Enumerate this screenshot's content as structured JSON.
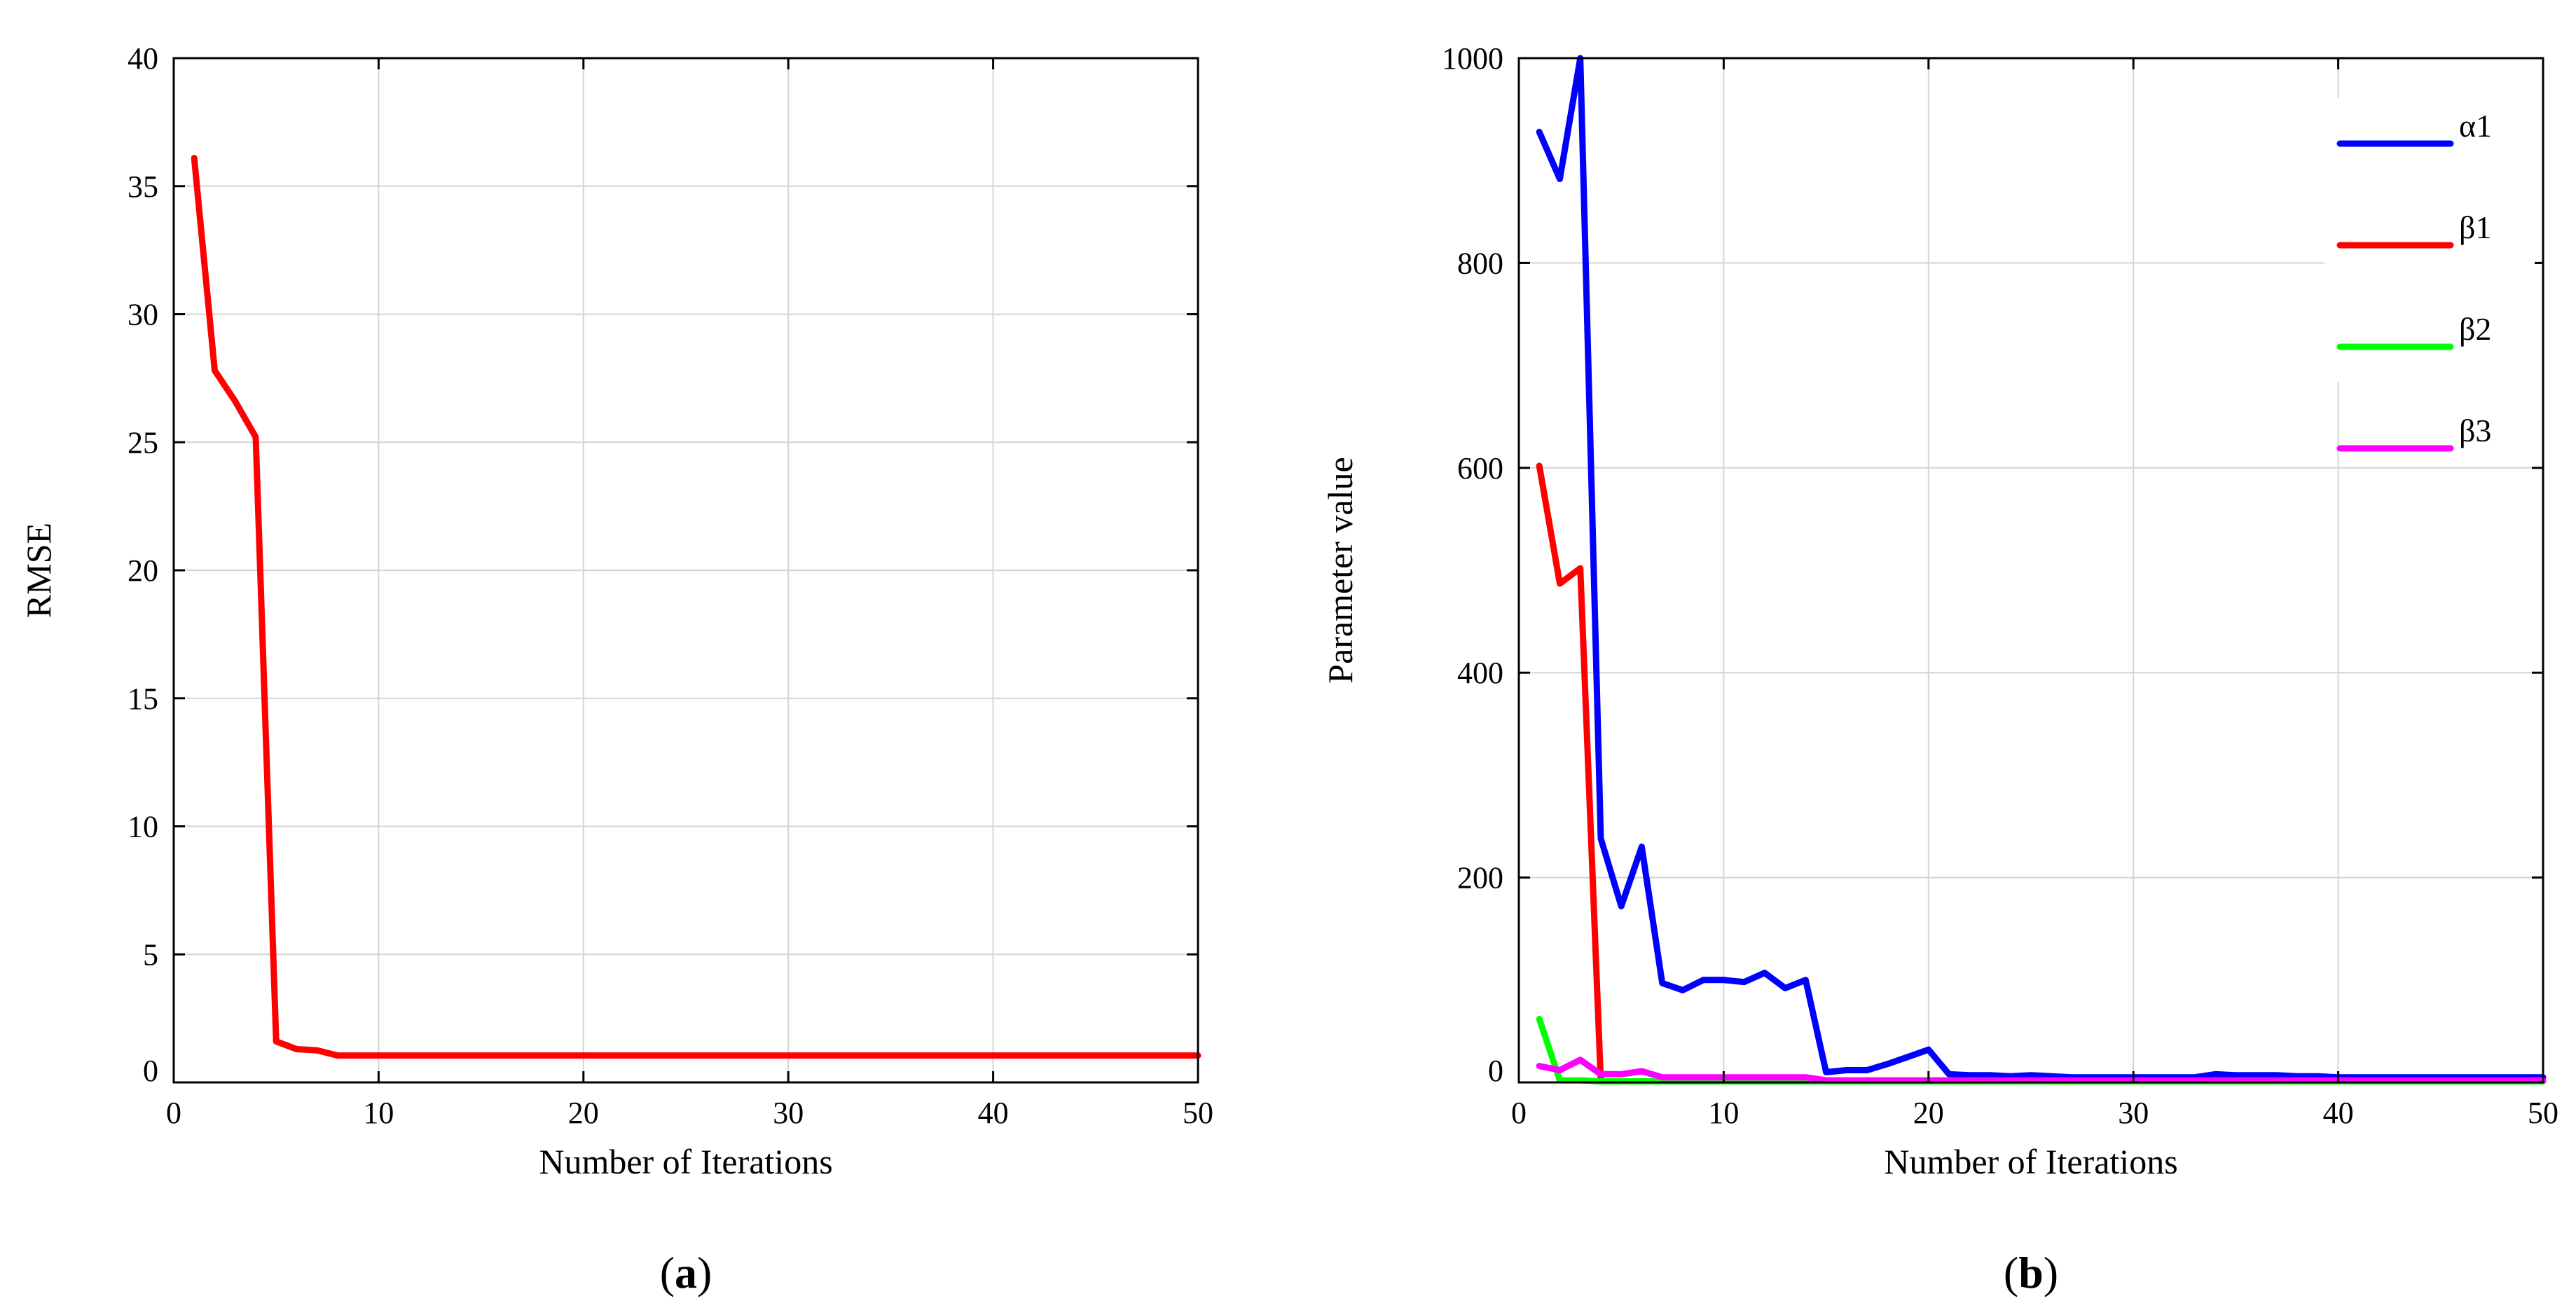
{
  "chart_data": [
    {
      "id": "a",
      "type": "line",
      "panel_label": "a",
      "xlabel": "Number of Iterations",
      "ylabel": "RMSE",
      "xlim": [
        0,
        50
      ],
      "ylim": [
        0,
        40
      ],
      "xticks": [
        0,
        10,
        20,
        30,
        40,
        50
      ],
      "yticks": [
        0,
        5,
        10,
        15,
        20,
        25,
        30,
        35,
        40
      ],
      "grid": true,
      "series": [
        {
          "color": "#ff0000",
          "x": [
            1,
            2,
            3,
            4,
            5,
            6,
            7,
            8,
            9,
            10,
            11,
            12,
            13,
            14,
            15,
            16,
            17,
            18,
            19,
            20,
            21,
            22,
            23,
            24,
            25,
            26,
            27,
            28,
            29,
            30,
            31,
            32,
            33,
            34,
            35,
            36,
            37,
            38,
            39,
            40,
            41,
            42,
            43,
            44,
            45,
            46,
            47,
            48,
            49,
            50
          ],
          "y": [
            36.1,
            27.8,
            26.6,
            25.2,
            1.6,
            1.3,
            1.25,
            1.05,
            1.05,
            1.05,
            1.05,
            1.05,
            1.05,
            1.05,
            1.05,
            1.05,
            1.05,
            1.05,
            1.05,
            1.05,
            1.05,
            1.05,
            1.05,
            1.05,
            1.05,
            1.05,
            1.05,
            1.05,
            1.05,
            1.05,
            1.05,
            1.05,
            1.05,
            1.05,
            1.05,
            1.05,
            1.05,
            1.05,
            1.05,
            1.05,
            1.05,
            1.05,
            1.05,
            1.05,
            1.05,
            1.05,
            1.05,
            1.05,
            1.05,
            1.05
          ]
        }
      ]
    },
    {
      "id": "b",
      "type": "line",
      "panel_label": "b",
      "xlabel": "Number of Iterations",
      "ylabel": "Parameter value",
      "xlim": [
        0,
        50
      ],
      "ylim": [
        0,
        1000
      ],
      "xticks": [
        0,
        10,
        20,
        30,
        40,
        50
      ],
      "yticks": [
        0,
        200,
        400,
        600,
        800,
        1000
      ],
      "grid": true,
      "legend": "top-right",
      "series": [
        {
          "name": "α1",
          "color": "#0000ff",
          "x": [
            1,
            2,
            3,
            4,
            5,
            6,
            7,
            8,
            9,
            10,
            11,
            12,
            13,
            14,
            15,
            16,
            17,
            18,
            19,
            20,
            21,
            22,
            23,
            24,
            25,
            26,
            27,
            28,
            29,
            30,
            31,
            32,
            33,
            34,
            35,
            36,
            37,
            38,
            39,
            40,
            41,
            42,
            43,
            44,
            45,
            46,
            47,
            48,
            49,
            50
          ],
          "y": [
            928,
            882,
            1000,
            238,
            172,
            230,
            97,
            90,
            100,
            100,
            98,
            107,
            92,
            100,
            10,
            12,
            12,
            18,
            25,
            32,
            8,
            7,
            7,
            6,
            7,
            6,
            5,
            5,
            5,
            5,
            5,
            5,
            5,
            8,
            7,
            7,
            7,
            6,
            6,
            5,
            5,
            5,
            5,
            5,
            5,
            5,
            5,
            5,
            5,
            5
          ]
        },
        {
          "name": "β1",
          "color": "#ff0000",
          "x": [
            1,
            2,
            3,
            4,
            5,
            6,
            7,
            8,
            9,
            10,
            11,
            12,
            13,
            14,
            15,
            16,
            17,
            18,
            19,
            20,
            21,
            22,
            23,
            24,
            25,
            26,
            27,
            28,
            29,
            30,
            31,
            32,
            33,
            34,
            35,
            36,
            37,
            38,
            39,
            40,
            41,
            42,
            43,
            44,
            45,
            46,
            47,
            48,
            49,
            50
          ],
          "y": [
            602,
            487,
            502,
            1,
            1,
            1,
            1,
            1,
            1,
            1,
            1,
            1,
            1,
            1,
            1,
            1,
            1,
            1,
            1,
            1,
            1,
            1,
            1,
            1,
            1,
            1,
            1,
            1,
            1,
            1,
            1,
            1,
            1,
            1,
            1,
            1,
            1,
            1,
            1,
            1,
            1,
            1,
            1,
            1,
            1,
            1,
            1,
            1,
            1,
            1
          ]
        },
        {
          "name": "β2",
          "color": "#00ff00",
          "x": [
            1,
            2,
            3,
            4,
            5,
            6,
            7,
            8,
            9,
            10,
            11,
            12,
            13,
            14,
            15,
            16,
            17,
            18,
            19,
            20,
            21,
            22,
            23,
            24,
            25,
            26,
            27,
            28,
            29,
            30,
            31,
            32,
            33,
            34,
            35,
            36,
            37,
            38,
            39,
            40,
            41,
            42,
            43,
            44,
            45,
            46,
            47,
            48,
            49,
            50
          ],
          "y": [
            62,
            2,
            2,
            1,
            1,
            1,
            1,
            1,
            1,
            1,
            1,
            1,
            1,
            1,
            1,
            1,
            1,
            1,
            1,
            1,
            1,
            1,
            1,
            1,
            1,
            1,
            1,
            1,
            1,
            1,
            1,
            1,
            1,
            1,
            1,
            1,
            1,
            1,
            1,
            1,
            1,
            1,
            1,
            1,
            1,
            1,
            1,
            1,
            1,
            1
          ]
        },
        {
          "name": "β3",
          "color": "#ff00ff",
          "x": [
            1,
            2,
            3,
            4,
            5,
            6,
            7,
            8,
            9,
            10,
            11,
            12,
            13,
            14,
            15,
            16,
            17,
            18,
            19,
            20,
            21,
            22,
            23,
            24,
            25,
            26,
            27,
            28,
            29,
            30,
            31,
            32,
            33,
            34,
            35,
            36,
            37,
            38,
            39,
            40,
            41,
            42,
            43,
            44,
            45,
            46,
            47,
            48,
            49,
            50
          ],
          "y": [
            16,
            12,
            22,
            8,
            8,
            11,
            5,
            5,
            5,
            5,
            5,
            5,
            5,
            5,
            2,
            2,
            2,
            2,
            2,
            2,
            2,
            2,
            2,
            2,
            2,
            2,
            2,
            2,
            2,
            2,
            2,
            2,
            2,
            2,
            2,
            2,
            2,
            2,
            2,
            2,
            2,
            2,
            2,
            2,
            2,
            2,
            2,
            2,
            2,
            2
          ]
        }
      ]
    }
  ]
}
